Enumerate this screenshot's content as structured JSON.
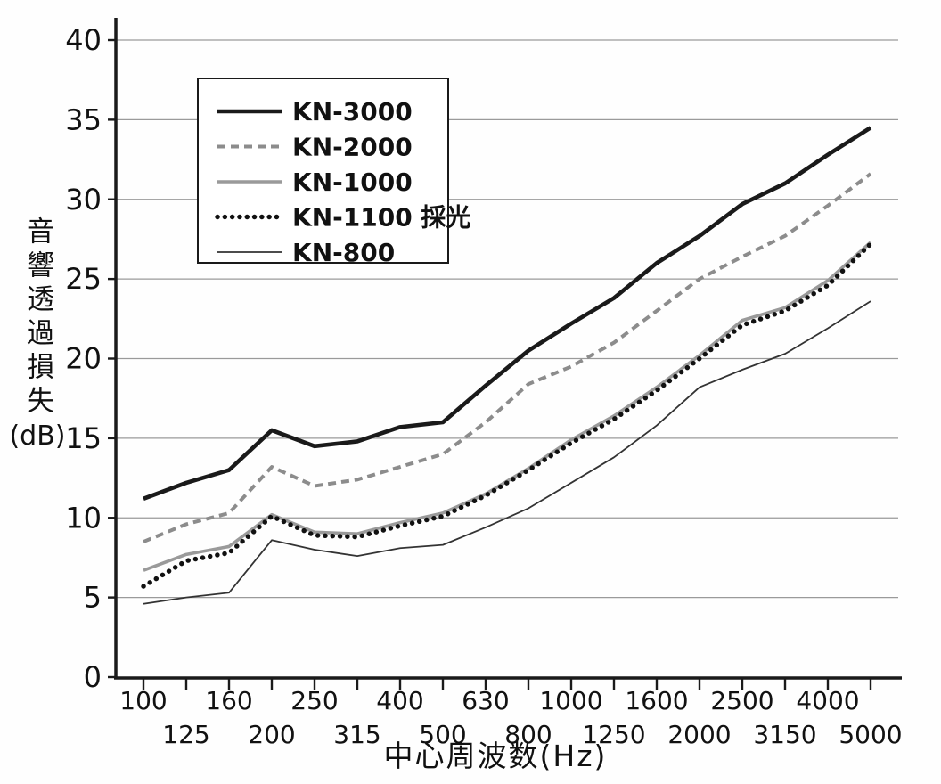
{
  "chart_data": {
    "type": "line",
    "title": "",
    "xlabel": "中心周波数(Hz)",
    "ylabel": "音響透過損失",
    "ylabel_unit": "(dB)",
    "x_categories": [
      "100",
      "125",
      "160",
      "200",
      "250",
      "315",
      "400",
      "500",
      "630",
      "800",
      "1000",
      "1250",
      "1600",
      "2000",
      "2500",
      "3150",
      "4000",
      "5000"
    ],
    "ylim": [
      0,
      40
    ],
    "ytick_interval": 5,
    "ytick_labels": [
      "0",
      "5",
      "10",
      "15",
      "20",
      "25",
      "30",
      "35",
      "40"
    ],
    "grid": "horizontal",
    "legend_position": "top-left-inside",
    "axis_color": "#1a1a1a",
    "grid_color": "#9a9a9a",
    "series": [
      {
        "name": "KN-3000",
        "style": "solid-thick",
        "color": "#1a1a1a",
        "values": [
          11.2,
          12.2,
          13.0,
          15.5,
          14.5,
          14.8,
          15.7,
          16.0,
          18.3,
          20.5,
          22.2,
          23.8,
          26.0,
          27.7,
          29.7,
          31.0,
          32.8,
          34.5
        ]
      },
      {
        "name": "KN-2000",
        "style": "dashed",
        "color": "#8c8c8c",
        "values": [
          8.5,
          9.6,
          10.3,
          13.2,
          12.0,
          12.4,
          13.2,
          14.0,
          16.0,
          18.4,
          19.5,
          21.0,
          23.0,
          25.0,
          26.4,
          27.7,
          29.6,
          31.6
        ]
      },
      {
        "name": "KN-1000",
        "style": "solid",
        "color": "#9a9a9a",
        "values": [
          6.7,
          7.7,
          8.2,
          10.2,
          9.1,
          9.0,
          9.7,
          10.3,
          11.5,
          13.1,
          14.9,
          16.4,
          18.2,
          20.2,
          22.4,
          23.2,
          24.9,
          27.3
        ]
      },
      {
        "name": "KN-1100 採光",
        "style": "dotted",
        "color": "#111111",
        "values": [
          5.7,
          7.3,
          7.8,
          10.1,
          8.9,
          8.8,
          9.5,
          10.1,
          11.4,
          13.0,
          14.7,
          16.2,
          18.0,
          20.0,
          22.1,
          23.0,
          24.6,
          27.2
        ]
      },
      {
        "name": "KN-800",
        "style": "solid-thin",
        "color": "#333333",
        "values": [
          4.6,
          5.0,
          5.3,
          8.6,
          8.0,
          7.6,
          8.1,
          8.3,
          9.4,
          10.6,
          12.2,
          13.8,
          15.8,
          18.2,
          19.3,
          20.3,
          21.9,
          23.6
        ]
      }
    ]
  }
}
